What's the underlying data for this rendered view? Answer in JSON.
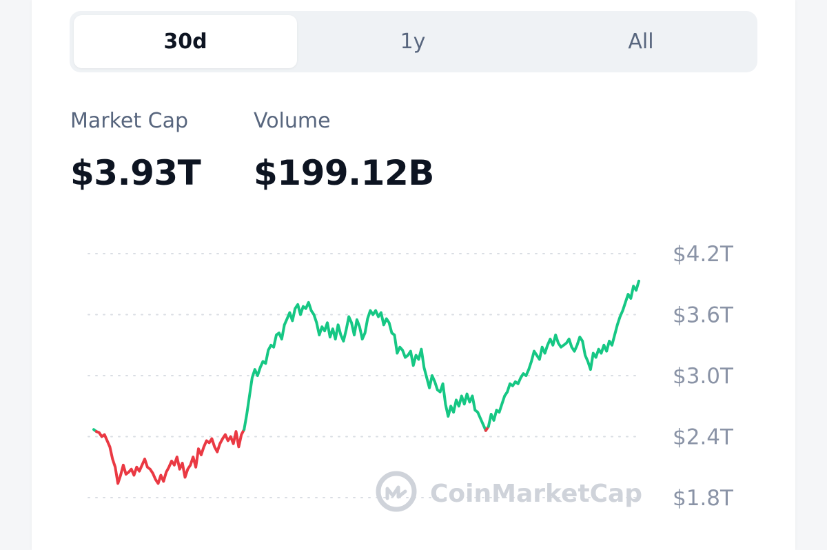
{
  "tabs": [
    {
      "label": "30d",
      "active": true
    },
    {
      "label": "1y",
      "active": false
    },
    {
      "label": "All",
      "active": false
    }
  ],
  "stats": {
    "market_cap": {
      "label": "Market Cap",
      "value": "$3.93T"
    },
    "volume": {
      "label": "Volume",
      "value": "$199.12B"
    }
  },
  "watermark": {
    "text": "CoinMarketCap",
    "icon": "coinmarketcap-logo-icon"
  },
  "colors": {
    "up": "#16c784",
    "down": "#ea3943",
    "grid": "#d9dde3",
    "tick": "#8a93a6"
  },
  "chart_data": {
    "type": "line",
    "title": "",
    "xlabel": "",
    "ylabel": "",
    "ylim": [
      1.75,
      4.2
    ],
    "y_ticks": [
      {
        "value": 4.2,
        "label": "$4.2T"
      },
      {
        "value": 3.6,
        "label": "$3.6T"
      },
      {
        "value": 3.0,
        "label": "$3.0T"
      },
      {
        "value": 2.4,
        "label": "$2.4T"
      },
      {
        "value": 1.8,
        "label": "$1.8T"
      }
    ],
    "baseline": 2.47,
    "grid": true,
    "series": [
      {
        "values": [
          2.47,
          2.45,
          2.44,
          2.4,
          2.42,
          2.36,
          2.3,
          2.18,
          2.1,
          1.94,
          2.02,
          2.12,
          2.03,
          2.05,
          2.08,
          2.02,
          2.1,
          2.06,
          2.12,
          2.18,
          2.1,
          2.08,
          2.04,
          1.98,
          1.94,
          2.02,
          1.96,
          2.05,
          2.1,
          2.16,
          2.12,
          2.2,
          2.08,
          2.14,
          2.0,
          2.08,
          2.12,
          2.2,
          2.1,
          2.28,
          2.22,
          2.3,
          2.36,
          2.34,
          2.38,
          2.3,
          2.25,
          2.33,
          2.38,
          2.42,
          2.36,
          2.4,
          2.33,
          2.45,
          2.3,
          2.42,
          2.47,
          2.62,
          2.8,
          2.98,
          3.06,
          3.0,
          3.08,
          3.14,
          3.12,
          3.25,
          3.3,
          3.28,
          3.4,
          3.42,
          3.36,
          3.5,
          3.56,
          3.62,
          3.54,
          3.66,
          3.7,
          3.6,
          3.68,
          3.66,
          3.72,
          3.64,
          3.6,
          3.52,
          3.4,
          3.48,
          3.44,
          3.52,
          3.38,
          3.46,
          3.36,
          3.5,
          3.4,
          3.34,
          3.45,
          3.58,
          3.52,
          3.4,
          3.55,
          3.48,
          3.36,
          3.42,
          3.56,
          3.64,
          3.6,
          3.64,
          3.58,
          3.62,
          3.5,
          3.56,
          3.52,
          3.42,
          3.4,
          3.22,
          3.28,
          3.25,
          3.18,
          3.2,
          3.24,
          3.1,
          3.2,
          3.16,
          3.26,
          3.08,
          2.98,
          2.88,
          3.0,
          2.94,
          2.86,
          2.84,
          2.92,
          2.72,
          2.6,
          2.7,
          2.64,
          2.76,
          2.7,
          2.8,
          2.72,
          2.82,
          2.74,
          2.8,
          2.66,
          2.64,
          2.58,
          2.52,
          2.46,
          2.5,
          2.62,
          2.56,
          2.66,
          2.64,
          2.72,
          2.8,
          2.84,
          2.92,
          2.9,
          2.94,
          2.92,
          2.98,
          3.02,
          3.0,
          3.06,
          3.14,
          3.24,
          3.2,
          3.16,
          3.28,
          3.22,
          3.3,
          3.36,
          3.3,
          3.4,
          3.32,
          3.28,
          3.3,
          3.32,
          3.36,
          3.28,
          3.24,
          3.3,
          3.38,
          3.34,
          3.2,
          3.14,
          3.06,
          3.22,
          3.18,
          3.26,
          3.22,
          3.3,
          3.24,
          3.34,
          3.3,
          3.4,
          3.5,
          3.58,
          3.64,
          3.72,
          3.8,
          3.76,
          3.88,
          3.84,
          3.93
        ]
      }
    ]
  }
}
